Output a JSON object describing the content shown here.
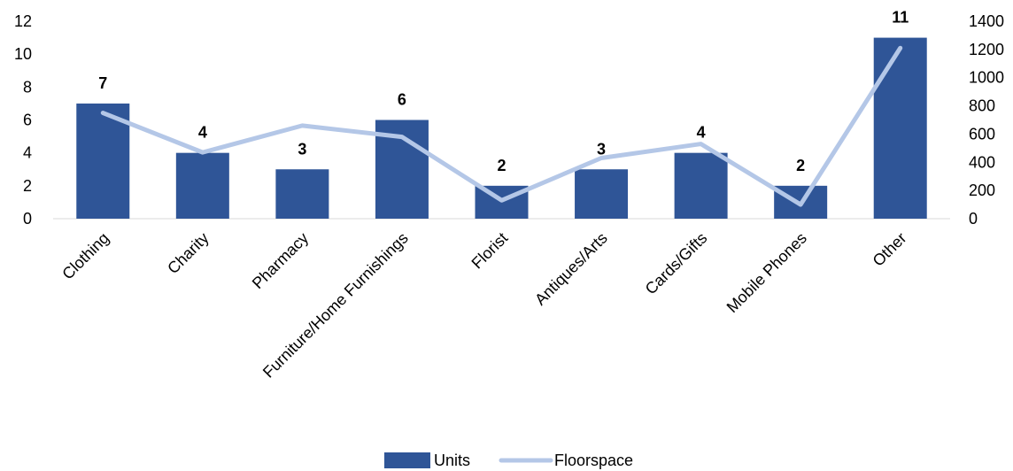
{
  "chart_data": {
    "type": "bar",
    "categories": [
      "Clothing",
      "Charity",
      "Pharmacy",
      "Furniture/Home Furnishings",
      "Florist",
      "Antiques/Arts",
      "Cards/Gifts",
      "Mobile Phones",
      "Other"
    ],
    "series": [
      {
        "name": "Units",
        "type": "bar",
        "axis": "left",
        "values": [
          7,
          4,
          3,
          6,
          2,
          3,
          4,
          2,
          11
        ],
        "color": "#2F5597"
      },
      {
        "name": "Floorspace",
        "type": "line",
        "axis": "right",
        "values": [
          750,
          470,
          660,
          580,
          130,
          430,
          530,
          100,
          1210
        ],
        "color": "#B4C7E7"
      }
    ],
    "y_left": {
      "ylim": [
        0,
        12
      ],
      "ticks": [
        "0",
        "2",
        "4",
        "6",
        "8",
        "10",
        "12"
      ]
    },
    "y_right": {
      "ylim": [
        0,
        1400
      ],
      "ticks": [
        "0",
        "200",
        "400",
        "600",
        "800",
        "1000",
        "1200",
        "1400"
      ]
    },
    "data_labels": [
      "7",
      "4",
      "3",
      "6",
      "2",
      "3",
      "4",
      "2",
      "11"
    ],
    "grid": false,
    "legend": {
      "position": "bottom",
      "entries": [
        "Units",
        "Floorspace"
      ]
    }
  }
}
